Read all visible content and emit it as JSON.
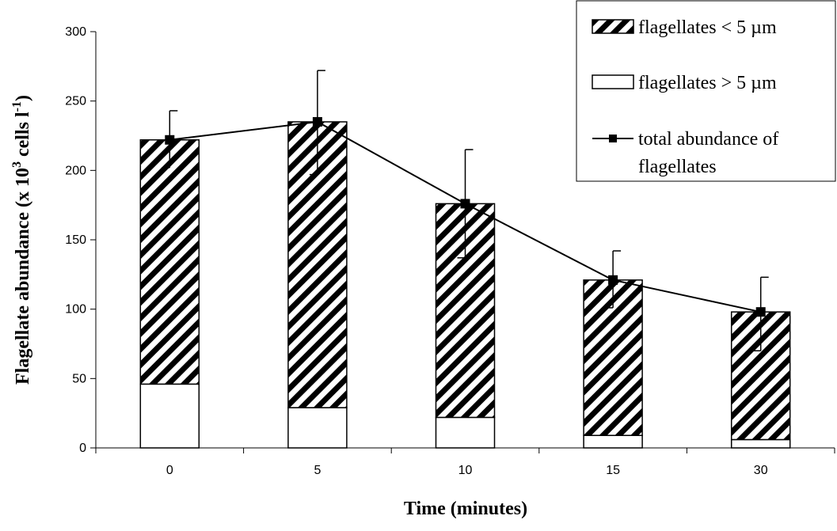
{
  "chart_data": {
    "type": "bar",
    "stacked": true,
    "categories": [
      "0",
      "5",
      "10",
      "15",
      "30"
    ],
    "xlabel": "Time (minutes)",
    "ylabel": "Flagellate abundance (x 10",
    "ylabel_sup1": "3",
    "ylabel_mid": " cells l",
    "ylabel_sup2": "-1",
    "ylabel_end": ")",
    "ylim": [
      0,
      300
    ],
    "yticks": [
      0,
      50,
      100,
      150,
      200,
      250,
      300
    ],
    "legend_position": "top-right",
    "series": [
      {
        "name": "flagellates > 5 µm",
        "kind": "bar",
        "fill": "white",
        "values": [
          46,
          29,
          22,
          9,
          6
        ]
      },
      {
        "name": "flagellates < 5 µm",
        "kind": "bar",
        "fill": "hatched",
        "values": [
          176,
          206,
          154,
          112,
          92
        ]
      },
      {
        "name_line1": "total abundance of",
        "name_line2": "flagellates",
        "kind": "line",
        "marker": "square",
        "values": [
          222,
          235,
          176,
          121,
          98
        ],
        "error_upper": [
          243,
          272,
          215,
          142,
          123
        ],
        "error_lower": [
          202,
          197,
          137,
          101,
          70
        ]
      }
    ]
  },
  "colors": {
    "stroke": "#000000",
    "background": "#ffffff",
    "hatch": "#000000"
  }
}
